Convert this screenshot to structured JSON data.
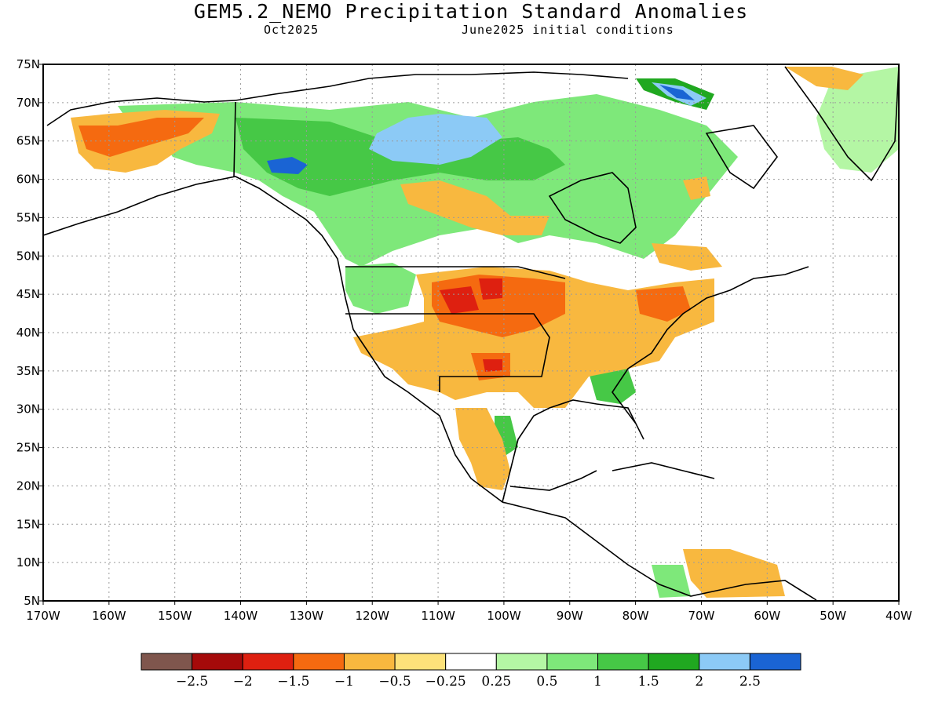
{
  "title": "GEM5.2_NEMO Precipitation Standard Anomalies",
  "subtitle_left": "Oct2025",
  "subtitle_right": "June2025 initial conditions",
  "lat_ticks": [
    "75N",
    "70N",
    "65N",
    "60N",
    "55N",
    "50N",
    "45N",
    "40N",
    "35N",
    "30N",
    "25N",
    "20N",
    "15N",
    "10N",
    "5N"
  ],
  "lon_ticks": [
    "170W",
    "160W",
    "150W",
    "140W",
    "130W",
    "120W",
    "110W",
    "100W",
    "90W",
    "80W",
    "70W",
    "60W",
    "50W",
    "40W"
  ],
  "colorbar": {
    "colors": [
      "#7f564d",
      "#a50a0a",
      "#de2010",
      "#f56a10",
      "#f8b83f",
      "#fde27a",
      "#ffffff",
      "#b4f6a4",
      "#7ee87a",
      "#46c846",
      "#20a820",
      "#8ccaf6",
      "#1a64d4"
    ],
    "labels": [
      "-2.5",
      "-2",
      "-1.5",
      "-1",
      "-0.5",
      "-0.25",
      "0.25",
      "0.5",
      "1",
      "1.5",
      "2",
      "2.5"
    ]
  }
}
